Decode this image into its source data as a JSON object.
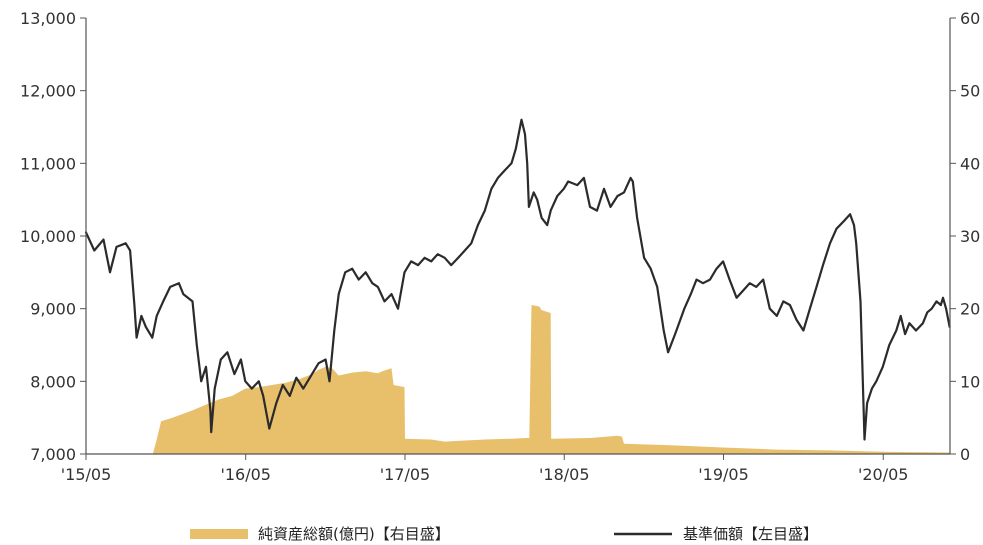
{
  "chart_data": {
    "type": "area+line",
    "title": "",
    "x_tick_labels": [
      "'15/05",
      "'16/05",
      "'17/05",
      "'18/05",
      "'19/05",
      "'20/05"
    ],
    "x_range": [
      "2015-05",
      "2020-09"
    ],
    "left_axis": {
      "ticks": [
        "7,000",
        "8,000",
        "9,000",
        "10,000",
        "11,000",
        "12,000",
        "13,000"
      ],
      "range": [
        7000,
        13000
      ]
    },
    "right_axis": {
      "ticks": [
        "0",
        "10",
        "20",
        "30",
        "40",
        "50",
        "60"
      ],
      "range": [
        0,
        60
      ]
    },
    "grid": false,
    "legend_position": "bottom",
    "colors": {
      "nav_line": "#2b2b2b",
      "assets_area": "#e8c06c",
      "axis": "#555555"
    },
    "series": [
      {
        "name": "純資産総額(億円)【右目盛】",
        "kind": "area",
        "axis": "right",
        "points": [
          [
            "2015-05-01",
            0
          ],
          [
            "2015-10-01",
            0
          ],
          [
            "2015-10-10",
            2
          ],
          [
            "2015-10-20",
            4.5
          ],
          [
            "2015-11-15",
            5
          ],
          [
            "2015-12-31",
            6
          ],
          [
            "2016-01-31",
            6.8
          ],
          [
            "2016-02-29",
            7.5
          ],
          [
            "2016-03-31",
            8
          ],
          [
            "2016-04-30",
            9
          ],
          [
            "2016-05-31",
            9.2
          ],
          [
            "2016-06-30",
            9.5
          ],
          [
            "2016-07-31",
            9.8
          ],
          [
            "2016-08-31",
            10.3
          ],
          [
            "2016-09-30",
            11
          ],
          [
            "2016-10-15",
            11.6
          ],
          [
            "2016-10-31",
            12
          ],
          [
            "2016-11-15",
            11.8
          ],
          [
            "2016-11-30",
            10.8
          ],
          [
            "2016-12-31",
            11.2
          ],
          [
            "2017-01-31",
            11.4
          ],
          [
            "2017-02-28",
            11.1
          ],
          [
            "2017-03-10",
            11.4
          ],
          [
            "2017-03-31",
            11.8
          ],
          [
            "2017-04-05",
            9.5
          ],
          [
            "2017-04-30",
            9.2
          ],
          [
            "2017-05-01",
            2.1
          ],
          [
            "2017-06-30",
            2.0
          ],
          [
            "2017-07-31",
            1.7
          ],
          [
            "2017-08-31",
            1.8
          ],
          [
            "2017-10-31",
            2
          ],
          [
            "2017-12-31",
            2.1
          ],
          [
            "2018-01-31",
            2.2
          ],
          [
            "2018-02-10",
            2.2
          ],
          [
            "2018-02-15",
            20.5
          ],
          [
            "2018-03-05",
            20.3
          ],
          [
            "2018-03-10",
            19.8
          ],
          [
            "2018-03-31",
            19.4
          ],
          [
            "2018-04-01",
            2.1
          ],
          [
            "2018-06-30",
            2.2
          ],
          [
            "2018-08-31",
            2.5
          ],
          [
            "2018-09-10",
            2.4
          ],
          [
            "2018-09-15",
            1.4
          ],
          [
            "2018-12-31",
            1.2
          ],
          [
            "2019-04-30",
            0.9
          ],
          [
            "2019-08-31",
            0.6
          ],
          [
            "2019-12-31",
            0.5
          ],
          [
            "2020-04-30",
            0.3
          ],
          [
            "2020-09-30",
            0.2
          ]
        ]
      },
      {
        "name": "基準価額【左目盛】",
        "kind": "line",
        "axis": "left",
        "points": [
          [
            "2015-05-01",
            10050
          ],
          [
            "2015-05-20",
            9800
          ],
          [
            "2015-06-10",
            9950
          ],
          [
            "2015-06-25",
            9500
          ],
          [
            "2015-07-10",
            9850
          ],
          [
            "2015-07-31",
            9900
          ],
          [
            "2015-08-10",
            9800
          ],
          [
            "2015-08-20",
            9050
          ],
          [
            "2015-08-25",
            8600
          ],
          [
            "2015-09-05",
            8900
          ],
          [
            "2015-09-15",
            8750
          ],
          [
            "2015-09-30",
            8600
          ],
          [
            "2015-10-10",
            8900
          ],
          [
            "2015-10-25",
            9100
          ],
          [
            "2015-11-10",
            9300
          ],
          [
            "2015-11-30",
            9350
          ],
          [
            "2015-12-10",
            9200
          ],
          [
            "2015-12-31",
            9100
          ],
          [
            "2016-01-10",
            8500
          ],
          [
            "2016-01-20",
            8000
          ],
          [
            "2016-01-31",
            8200
          ],
          [
            "2016-02-10",
            7600
          ],
          [
            "2016-02-12",
            7300
          ],
          [
            "2016-02-20",
            7900
          ],
          [
            "2016-03-05",
            8300
          ],
          [
            "2016-03-20",
            8400
          ],
          [
            "2016-04-05",
            8100
          ],
          [
            "2016-04-20",
            8300
          ],
          [
            "2016-04-30",
            8000
          ],
          [
            "2016-05-15",
            7900
          ],
          [
            "2016-05-31",
            8000
          ],
          [
            "2016-06-10",
            7800
          ],
          [
            "2016-06-24",
            7350
          ],
          [
            "2016-07-10",
            7700
          ],
          [
            "2016-07-25",
            7950
          ],
          [
            "2016-08-10",
            7800
          ],
          [
            "2016-08-25",
            8050
          ],
          [
            "2016-09-10",
            7900
          ],
          [
            "2016-09-30",
            8100
          ],
          [
            "2016-10-15",
            8250
          ],
          [
            "2016-10-31",
            8300
          ],
          [
            "2016-11-09",
            8000
          ],
          [
            "2016-11-20",
            8700
          ],
          [
            "2016-11-30",
            9200
          ],
          [
            "2016-12-15",
            9500
          ],
          [
            "2016-12-31",
            9550
          ],
          [
            "2017-01-15",
            9400
          ],
          [
            "2017-01-31",
            9500
          ],
          [
            "2017-02-15",
            9350
          ],
          [
            "2017-02-28",
            9300
          ],
          [
            "2017-03-15",
            9100
          ],
          [
            "2017-03-31",
            9200
          ],
          [
            "2017-04-15",
            9000
          ],
          [
            "2017-04-30",
            9500
          ],
          [
            "2017-05-15",
            9650
          ],
          [
            "2017-05-31",
            9600
          ],
          [
            "2017-06-15",
            9700
          ],
          [
            "2017-06-30",
            9650
          ],
          [
            "2017-07-15",
            9750
          ],
          [
            "2017-07-31",
            9700
          ],
          [
            "2017-08-15",
            9600
          ],
          [
            "2017-08-31",
            9700
          ],
          [
            "2017-09-15",
            9800
          ],
          [
            "2017-09-30",
            9900
          ],
          [
            "2017-10-15",
            10150
          ],
          [
            "2017-10-31",
            10350
          ],
          [
            "2017-11-15",
            10650
          ],
          [
            "2017-11-30",
            10800
          ],
          [
            "2017-12-15",
            10900
          ],
          [
            "2017-12-31",
            11000
          ],
          [
            "2018-01-10",
            11200
          ],
          [
            "2018-01-23",
            11600
          ],
          [
            "2018-01-31",
            11400
          ],
          [
            "2018-02-05",
            11000
          ],
          [
            "2018-02-09",
            10400
          ],
          [
            "2018-02-20",
            10600
          ],
          [
            "2018-02-28",
            10500
          ],
          [
            "2018-03-10",
            10250
          ],
          [
            "2018-03-23",
            10150
          ],
          [
            "2018-03-31",
            10350
          ],
          [
            "2018-04-15",
            10550
          ],
          [
            "2018-04-30",
            10650
          ],
          [
            "2018-05-10",
            10750
          ],
          [
            "2018-05-31",
            10700
          ],
          [
            "2018-06-15",
            10800
          ],
          [
            "2018-06-29",
            10400
          ],
          [
            "2018-07-15",
            10350
          ],
          [
            "2018-07-31",
            10650
          ],
          [
            "2018-08-15",
            10400
          ],
          [
            "2018-08-31",
            10550
          ],
          [
            "2018-09-15",
            10600
          ],
          [
            "2018-09-30",
            10800
          ],
          [
            "2018-10-05",
            10750
          ],
          [
            "2018-10-15",
            10250
          ],
          [
            "2018-10-31",
            9700
          ],
          [
            "2018-11-15",
            9550
          ],
          [
            "2018-11-30",
            9300
          ],
          [
            "2018-12-15",
            8700
          ],
          [
            "2018-12-25",
            8400
          ],
          [
            "2019-01-10",
            8650
          ],
          [
            "2019-01-31",
            9000
          ],
          [
            "2019-02-15",
            9200
          ],
          [
            "2019-02-28",
            9400
          ],
          [
            "2019-03-15",
            9350
          ],
          [
            "2019-03-31",
            9400
          ],
          [
            "2019-04-15",
            9550
          ],
          [
            "2019-04-30",
            9650
          ],
          [
            "2019-05-15",
            9400
          ],
          [
            "2019-05-31",
            9150
          ],
          [
            "2019-06-15",
            9250
          ],
          [
            "2019-06-30",
            9350
          ],
          [
            "2019-07-15",
            9300
          ],
          [
            "2019-07-31",
            9400
          ],
          [
            "2019-08-15",
            9000
          ],
          [
            "2019-08-31",
            8900
          ],
          [
            "2019-09-15",
            9100
          ],
          [
            "2019-09-30",
            9050
          ],
          [
            "2019-10-15",
            8850
          ],
          [
            "2019-10-31",
            8700
          ],
          [
            "2019-11-15",
            9000
          ],
          [
            "2019-11-30",
            9300
          ],
          [
            "2019-12-15",
            9600
          ],
          [
            "2019-12-31",
            9900
          ],
          [
            "2020-01-15",
            10100
          ],
          [
            "2020-01-31",
            10200
          ],
          [
            "2020-02-15",
            10300
          ],
          [
            "2020-02-24",
            10150
          ],
          [
            "2020-02-29",
            9900
          ],
          [
            "2020-03-10",
            9100
          ],
          [
            "2020-03-19",
            7200
          ],
          [
            "2020-03-25",
            7700
          ],
          [
            "2020-04-05",
            7900
          ],
          [
            "2020-04-15",
            8000
          ],
          [
            "2020-04-30",
            8200
          ],
          [
            "2020-05-15",
            8500
          ],
          [
            "2020-05-31",
            8700
          ],
          [
            "2020-06-10",
            8900
          ],
          [
            "2020-06-20",
            8650
          ],
          [
            "2020-06-30",
            8800
          ],
          [
            "2020-07-15",
            8700
          ],
          [
            "2020-07-31",
            8800
          ],
          [
            "2020-08-10",
            8950
          ],
          [
            "2020-08-20",
            9000
          ],
          [
            "2020-08-31",
            9100
          ],
          [
            "2020-09-10",
            9050
          ],
          [
            "2020-09-15",
            9150
          ],
          [
            "2020-09-22",
            9000
          ],
          [
            "2020-09-30",
            8750
          ]
        ]
      }
    ]
  },
  "legend": {
    "assets_label": "純資産総額(億円)【右目盛】",
    "nav_label": "基準価額【左目盛】"
  }
}
